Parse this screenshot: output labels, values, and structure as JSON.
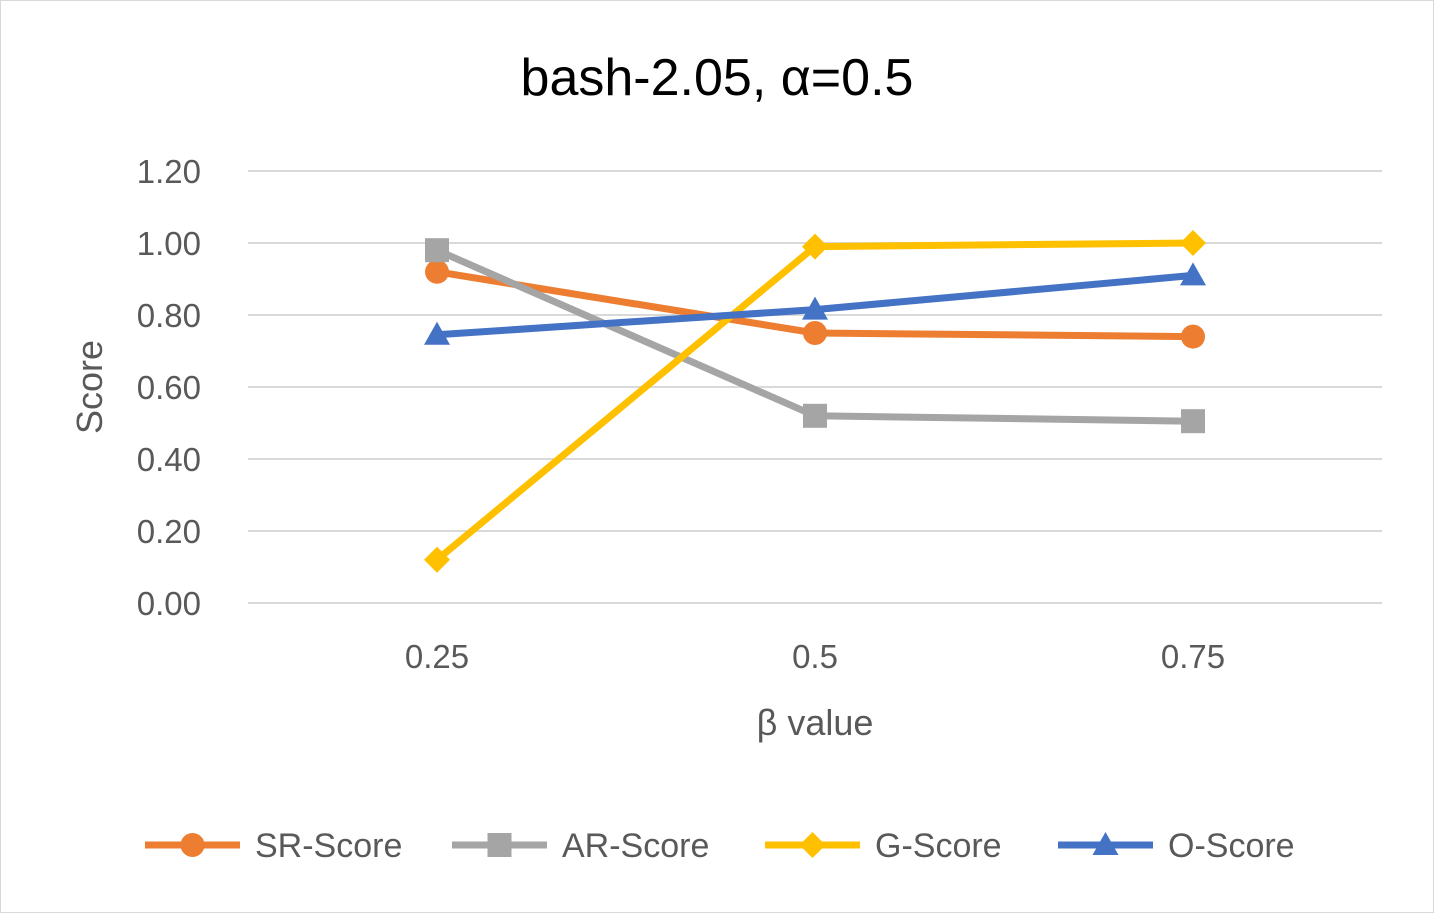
{
  "chart_data": {
    "type": "line",
    "title": "bash-2.05, α=0.5",
    "xlabel": "β value",
    "ylabel": "Score",
    "categories": [
      "0.25",
      "0.5",
      "0.75"
    ],
    "ylim": [
      0,
      1.2
    ],
    "yticks": [
      "0.00",
      "0.20",
      "0.40",
      "0.60",
      "0.80",
      "1.00",
      "1.20"
    ],
    "ytick_values": [
      0,
      0.2,
      0.4,
      0.6,
      0.8,
      1.0,
      1.2
    ],
    "grid": true,
    "legend_position": "bottom",
    "series": [
      {
        "name": "SR-Score",
        "values": [
          0.92,
          0.75,
          0.74
        ],
        "color": "#ED7D31",
        "marker": "circle"
      },
      {
        "name": "AR-Score",
        "values": [
          0.98,
          0.52,
          0.505
        ],
        "color": "#A5A5A5",
        "marker": "square"
      },
      {
        "name": "G-Score",
        "values": [
          0.12,
          0.99,
          1.0
        ],
        "color": "#FFC000",
        "marker": "diamond"
      },
      {
        "name": "O-Score",
        "values": [
          0.745,
          0.815,
          0.91
        ],
        "color": "#4472C4",
        "marker": "triangle"
      }
    ]
  }
}
